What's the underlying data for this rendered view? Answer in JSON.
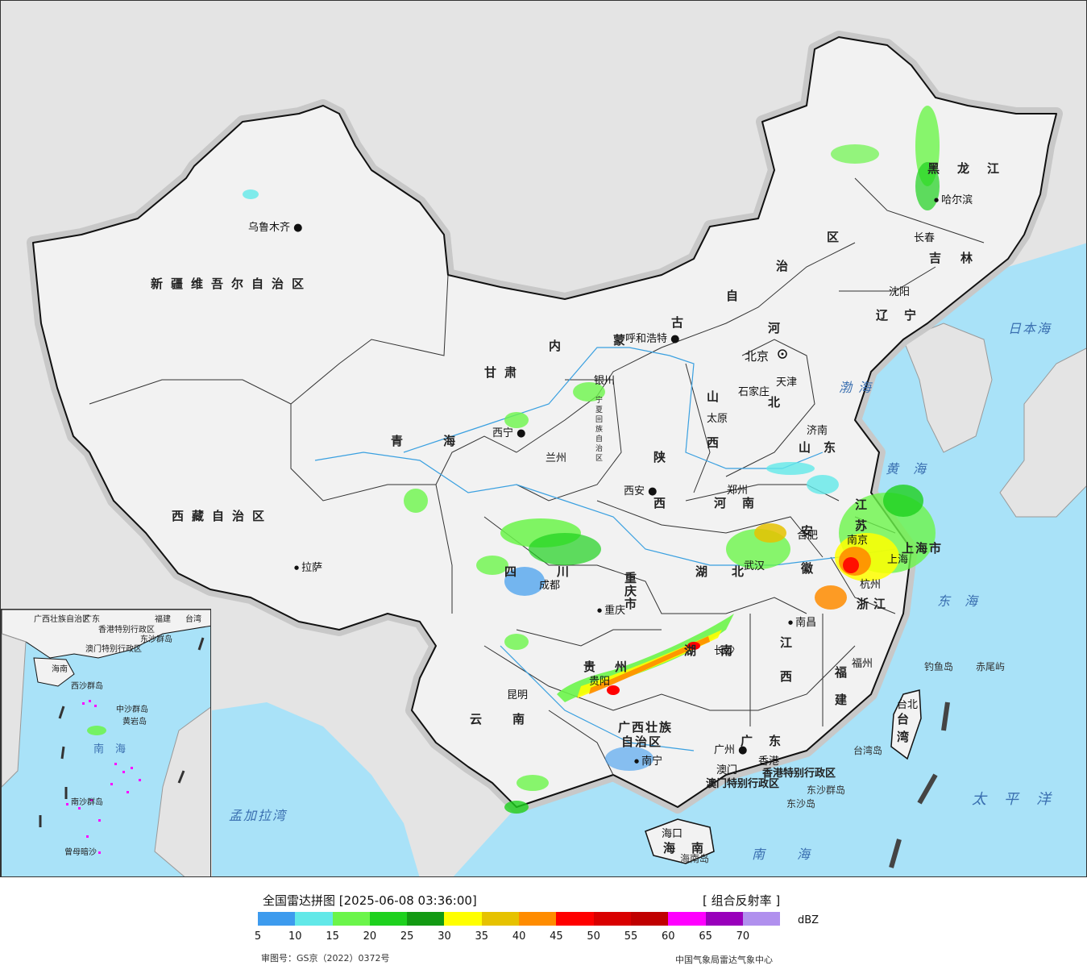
{
  "header": {
    "title": "全国雷达拼图 [2025-06-08 03:36:00]",
    "product": "[ 组合反射率 ]"
  },
  "legend": {
    "unit": "dBZ",
    "colors": [
      "#3d9bee",
      "#62e8e8",
      "#6bf54a",
      "#1ed11e",
      "#139a13",
      "#ffff00",
      "#e6c200",
      "#ff8c00",
      "#ff0000",
      "#d90000",
      "#c00000",
      "#ff00ff",
      "#9900bb",
      "#b090ee"
    ],
    "ticks": [
      "5",
      "10",
      "15",
      "20",
      "25",
      "30",
      "35",
      "40",
      "45",
      "50",
      "55",
      "60",
      "65",
      "70"
    ]
  },
  "footer": {
    "review_number": "审图号：GS京（2022）0372号",
    "credit": "中国气象局雷达气象中心"
  },
  "colors": {
    "ocean": "#a9e2f8",
    "land": "#f2f2f2",
    "foreign_land": "#e4e4e4",
    "border": "#111111"
  },
  "map": {
    "provinces": {
      "xinjiang": "新疆维吾尔自治区",
      "xizang": "西藏自治区",
      "qinghai": "青海",
      "gansu": "甘肃",
      "neimenggu_1": "内",
      "neimenggu_2": "蒙",
      "neimenggu_3": "古",
      "neimenggu_4": "自",
      "neimenggu_5": "治",
      "neimenggu_6": "区",
      "heilongjiang": "黑龙江",
      "jilin": "吉林",
      "liaoning": "辽宁",
      "hebei_1": "河",
      "hebei_2": "北",
      "shanxi_1": "山",
      "shanxi_2": "西",
      "shaanxi_1": "陕",
      "shaanxi_2": "西",
      "ningxia": "宁夏回族自治区",
      "shandong": "山东",
      "henan": "河南",
      "jiangsu": "江苏",
      "anhui": "安徽",
      "shanghai": "上海市",
      "zhejiang": "浙江",
      "hubei": "湖北",
      "hunan": "湖南",
      "jiangxi": "江西",
      "fujian": "福建",
      "sichuan": "四川",
      "chongqing": "重庆市",
      "guizhou": "贵州",
      "yunnan": "云南",
      "guangxi_1": "广西壮族",
      "guangxi_2": "自治区",
      "guangdong": "广东",
      "hainan": "海南",
      "taiwan": "台湾",
      "hk": "香港特别行政区",
      "macau": "澳门特别行政区"
    },
    "cities": {
      "urumqi": "乌鲁木齐",
      "lhasa": "拉萨",
      "xining": "西宁",
      "lanzhou": "兰州",
      "yinchuan": "银川",
      "hohhot": "呼和浩特",
      "beijing": "北京",
      "tianjin": "天津",
      "shijiazhuang": "石家庄",
      "taiyuan": "太原",
      "xian": "西安",
      "zhengzhou": "郑州",
      "jinan": "济南",
      "harbin": "哈尔滨",
      "changchun": "长春",
      "shenyang": "沈阳",
      "hefei": "合肥",
      "nanjing": "南京",
      "hangzhou": "杭州",
      "shanghai": "上海",
      "chengdu": "成都",
      "chongqing": "重庆",
      "wuhan": "武汉",
      "changsha": "长沙",
      "nanchang": "南昌",
      "fuzhou": "福州",
      "guiyang": "贵阳",
      "kunming": "昆明",
      "nanning": "南宁",
      "guangzhou": "广州",
      "macau": "澳门",
      "hongkong": "香港",
      "haikou": "海口",
      "taipei": "台北"
    },
    "seas": {
      "bohai": "渤海",
      "huanghai": "黄海",
      "donghai": "东海",
      "nanhai": "南海",
      "riben": "日本海",
      "taipingyang": "太平洋",
      "mengjiala": "孟加拉湾"
    },
    "islands": {
      "diaoyu": "钓鱼岛",
      "chiwei": "赤尾屿",
      "dongsha": "东沙群岛",
      "dongsha2": "东沙岛",
      "hainan_isl": "海南岛",
      "taiwan_isl": "台湾岛"
    }
  },
  "inset": {
    "labels": {
      "guangxi": "广西壮族自治区",
      "guangdong": "广东",
      "fujian": "福建",
      "taiwan": "台湾",
      "hk": "香港特别行政区",
      "macau": "澳门特别行政区",
      "dongsha": "东沙群岛",
      "hainan": "海南",
      "xisha": "西沙群岛",
      "zhongsha": "中沙群岛",
      "huangyan": "黄岩岛",
      "nanhai": "南海",
      "nansha": "南沙群岛",
      "zengmu": "曾母暗沙"
    }
  }
}
